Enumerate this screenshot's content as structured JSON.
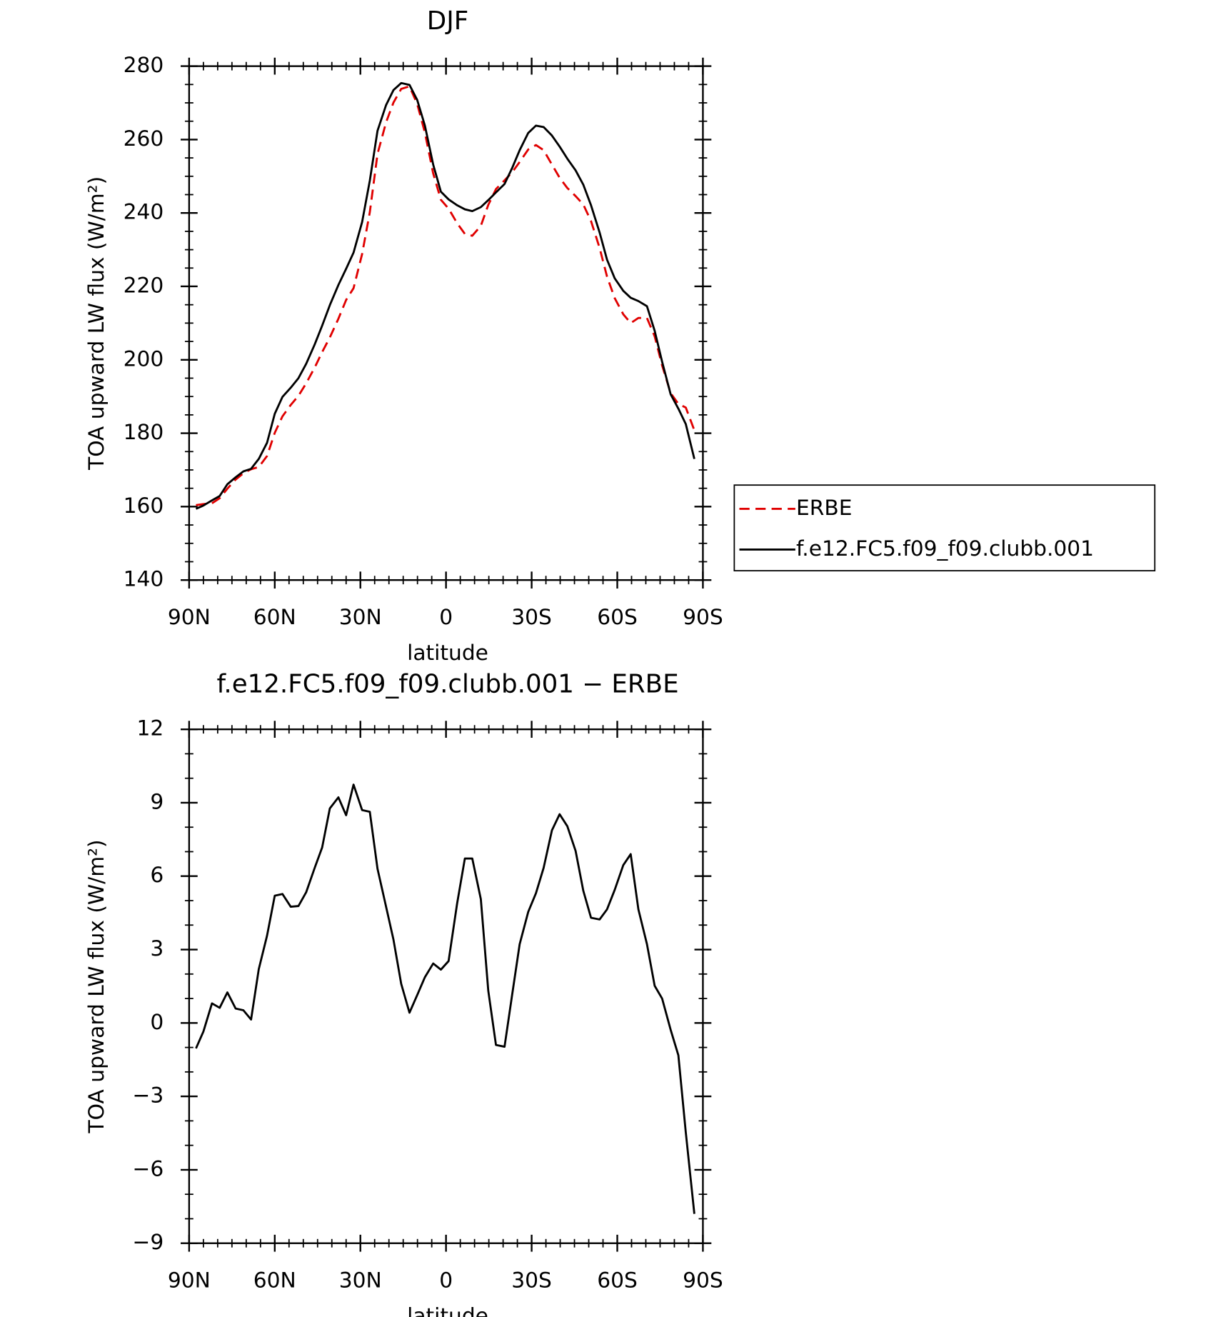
{
  "chart_data": [
    {
      "type": "line",
      "title": "DJF",
      "xlabel": "latitude",
      "ylabel": "TOA upward LW flux (W/m²)",
      "x": [
        87.6,
        85,
        82,
        79.3,
        76.6,
        73.7,
        71,
        68.3,
        65.6,
        62.7,
        60,
        57.3,
        54.4,
        51.7,
        49,
        46,
        43.4,
        40.7,
        37.7,
        35,
        32.4,
        29.4,
        26.7,
        24,
        21,
        18.4,
        15.7,
        12.8,
        10.1,
        7.4,
        4.5,
        1.8,
        -0.9,
        -3.9,
        -6.6,
        -9.2,
        -12.2,
        -14.8,
        -17.5,
        -20.5,
        -23.2,
        -25.8,
        -28.8,
        -31.5,
        -34.2,
        -37.1,
        -39.8,
        -42.5,
        -45.4,
        -48.1,
        -50.8,
        -53.8,
        -56.4,
        -59.1,
        -62.1,
        -64.7,
        -67.4,
        -70.4,
        -73.1,
        -75.7,
        -78.7,
        -81.4,
        -84,
        -87
      ],
      "series": [
        {
          "name": "ERBE",
          "color": "#e00000",
          "style": "dashed",
          "values": [
            160.4,
            160.7,
            160.9,
            162.3,
            164.9,
            167.4,
            169.1,
            170.2,
            170.8,
            173.8,
            180.1,
            184.6,
            187.7,
            190.2,
            193.6,
            197.9,
            202.1,
            206.1,
            211.2,
            216.3,
            219.5,
            228.8,
            240.2,
            256.1,
            264.7,
            270.1,
            273.8,
            274.5,
            269.7,
            261.9,
            250.8,
            243.6,
            241.2,
            237.2,
            234.3,
            233.8,
            236.5,
            242.2,
            246.5,
            248.9,
            251.1,
            253.9,
            257.3,
            258.5,
            257.1,
            253.2,
            249.6,
            246.8,
            244.6,
            242.3,
            237.8,
            230.5,
            222.7,
            216.8,
            212.4,
            210.0,
            211.4,
            211.4,
            206.4,
            198.5,
            190.9,
            188.0,
            187.0,
            180.8
          ]
        },
        {
          "name": "f.e12.FC5.f09_f09.clubb.001",
          "color": "#000000",
          "style": "solid",
          "values": [
            159.4,
            160.3,
            161.7,
            162.9,
            166.1,
            168.0,
            169.6,
            170.3,
            173.0,
            177.4,
            185.3,
            189.9,
            192.4,
            195.0,
            198.9,
            204.2,
            209.3,
            214.9,
            220.4,
            224.8,
            229.2,
            237.5,
            248.8,
            262.4,
            269.4,
            273.5,
            275.4,
            274.9,
            270.8,
            263.8,
            253.2,
            245.8,
            243.7,
            242.1,
            241.0,
            240.5,
            241.6,
            243.5,
            245.6,
            247.9,
            252.3,
            257.1,
            261.8,
            263.8,
            263.4,
            261.1,
            258.1,
            254.8,
            251.6,
            247.7,
            242.1,
            234.7,
            227.3,
            222.2,
            218.8,
            216.9,
            216.0,
            214.6,
            207.9,
            199.5,
            190.6,
            186.7,
            182.5,
            173.0
          ]
        }
      ],
      "xlim": [
        90,
        -90
      ],
      "xticks": [
        {
          "value": 90,
          "label": "90N"
        },
        {
          "value": 60,
          "label": "60N"
        },
        {
          "value": 30,
          "label": "30N"
        },
        0,
        {
          "value": -30,
          "label": "30S"
        },
        {
          "value": -60,
          "label": "60S"
        },
        {
          "value": -90,
          "label": "90S"
        }
      ],
      "ylim": [
        140,
        280
      ],
      "yticks": [
        140,
        160,
        180,
        200,
        220,
        240,
        260,
        280
      ],
      "legend": "right"
    },
    {
      "type": "line",
      "title": "f.e12.FC5.f09_f09.clubb.001 − ERBE",
      "xlabel": "latitude",
      "ylabel": "TOA upward LW flux (W/m²)",
      "x": [
        87.6,
        85,
        82,
        79.3,
        76.6,
        73.7,
        71,
        68.3,
        65.6,
        62.7,
        60,
        57.3,
        54.4,
        51.7,
        49,
        46,
        43.4,
        40.7,
        37.7,
        35,
        32.4,
        29.4,
        26.7,
        24,
        21,
        18.4,
        15.7,
        12.8,
        10.1,
        7.4,
        4.5,
        1.8,
        -0.9,
        -3.9,
        -6.6,
        -9.2,
        -12.2,
        -14.8,
        -17.5,
        -20.5,
        -23.2,
        -25.8,
        -28.8,
        -31.5,
        -34.2,
        -37.1,
        -39.8,
        -42.5,
        -45.4,
        -48.1,
        -50.8,
        -53.8,
        -56.4,
        -59.1,
        -62.1,
        -64.7,
        -67.4,
        -70.4,
        -73.1,
        -75.7,
        -78.7,
        -81.4,
        -84,
        -87
      ],
      "color": "#000000",
      "values": [
        -1.04,
        -0.35,
        0.8,
        0.62,
        1.25,
        0.59,
        0.52,
        0.14,
        2.2,
        3.57,
        5.2,
        5.27,
        4.75,
        4.78,
        5.34,
        6.34,
        7.17,
        8.77,
        9.22,
        8.49,
        9.74,
        8.7,
        8.63,
        6.3,
        4.75,
        3.4,
        1.6,
        0.42,
        1.14,
        1.87,
        2.43,
        2.18,
        2.53,
        4.89,
        6.72,
        6.72,
        5.06,
        1.32,
        -0.9,
        -0.97,
        1.18,
        3.22,
        4.54,
        5.3,
        6.34,
        7.87,
        8.53,
        8.04,
        7.03,
        5.4,
        4.3,
        4.23,
        4.64,
        5.44,
        6.45,
        6.9,
        4.64,
        3.22,
        1.52,
        1.0,
        -0.28,
        -1.32,
        -4.47,
        -7.8
      ],
      "xlim": [
        90,
        -90
      ],
      "xticks": [
        {
          "value": 90,
          "label": "90N"
        },
        {
          "value": 60,
          "label": "60N"
        },
        {
          "value": 30,
          "label": "30N"
        },
        0,
        {
          "value": -30,
          "label": "30S"
        },
        {
          "value": -60,
          "label": "60S"
        },
        {
          "value": -90,
          "label": "90S"
        }
      ],
      "ylim": [
        -9,
        12
      ],
      "yticks": [
        {
          "value": -9,
          "label": "−9"
        },
        {
          "value": -6,
          "label": "−6"
        },
        {
          "value": -3,
          "label": "−3"
        },
        0,
        3,
        6,
        9,
        12
      ]
    }
  ]
}
